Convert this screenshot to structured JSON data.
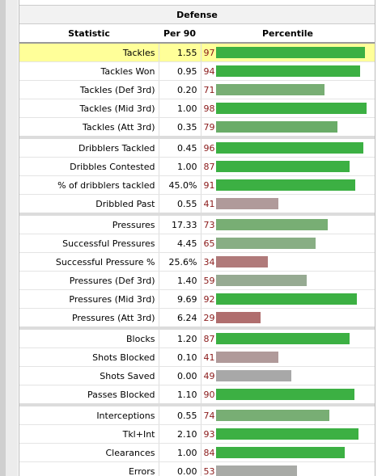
{
  "table": {
    "title": "Defense",
    "columns": [
      "Statistic",
      "Per 90",
      "Percentile"
    ],
    "groups": [
      {
        "rows": [
          {
            "statistic": "Tackles",
            "per90": "1.55",
            "percentile": 97,
            "color": "#3cb043",
            "highlighted": true
          },
          {
            "statistic": "Tackles Won",
            "per90": "0.95",
            "percentile": 94,
            "color": "#3cb043"
          },
          {
            "statistic": "Tackles (Def 3rd)",
            "per90": "0.20",
            "percentile": 71,
            "color": "#78ae74"
          },
          {
            "statistic": "Tackles (Mid 3rd)",
            "per90": "1.00",
            "percentile": 98,
            "color": "#3cb043"
          },
          {
            "statistic": "Tackles (Att 3rd)",
            "per90": "0.35",
            "percentile": 79,
            "color": "#6aac68"
          }
        ]
      },
      {
        "rows": [
          {
            "statistic": "Dribblers Tackled",
            "per90": "0.45",
            "percentile": 96,
            "color": "#3cb043"
          },
          {
            "statistic": "Dribbles Contested",
            "per90": "1.00",
            "percentile": 87,
            "color": "#3cb043"
          },
          {
            "statistic": "% of dribblers tackled",
            "per90": "45.0%",
            "percentile": 91,
            "color": "#3cb043"
          },
          {
            "statistic": "Dribbled Past",
            "per90": "0.55",
            "percentile": 41,
            "color": "#b09a9a"
          }
        ]
      },
      {
        "rows": [
          {
            "statistic": "Pressures",
            "per90": "17.33",
            "percentile": 73,
            "color": "#78ae74"
          },
          {
            "statistic": "Successful Pressures",
            "per90": "4.45",
            "percentile": 65,
            "color": "#88ae84"
          },
          {
            "statistic": "Successful Pressure %",
            "per90": "25.6%",
            "percentile": 34,
            "color": "#b07a7a"
          },
          {
            "statistic": "Pressures (Def 3rd)",
            "per90": "1.40",
            "percentile": 59,
            "color": "#96aa92"
          },
          {
            "statistic": "Pressures (Mid 3rd)",
            "per90": "9.69",
            "percentile": 92,
            "color": "#3cb043"
          },
          {
            "statistic": "Pressures (Att 3rd)",
            "per90": "6.24",
            "percentile": 29,
            "color": "#b06e6e"
          }
        ]
      },
      {
        "rows": [
          {
            "statistic": "Blocks",
            "per90": "1.20",
            "percentile": 87,
            "color": "#3cb043"
          },
          {
            "statistic": "Shots Blocked",
            "per90": "0.10",
            "percentile": 41,
            "color": "#b09a9a"
          },
          {
            "statistic": "Shots Saved",
            "per90": "0.00",
            "percentile": 49,
            "color": "#a8a8a8"
          },
          {
            "statistic": "Passes Blocked",
            "per90": "1.10",
            "percentile": 90,
            "color": "#3cb043"
          }
        ]
      },
      {
        "rows": [
          {
            "statistic": "Interceptions",
            "per90": "0.55",
            "percentile": 74,
            "color": "#78ae74"
          },
          {
            "statistic": "Tkl+Int",
            "per90": "2.10",
            "percentile": 93,
            "color": "#3cb043"
          },
          {
            "statistic": "Clearances",
            "per90": "1.00",
            "percentile": 84,
            "color": "#3cb043"
          },
          {
            "statistic": "Errors",
            "per90": "0.00",
            "percentile": 53,
            "color": "#a8aaa6"
          }
        ]
      }
    ]
  }
}
